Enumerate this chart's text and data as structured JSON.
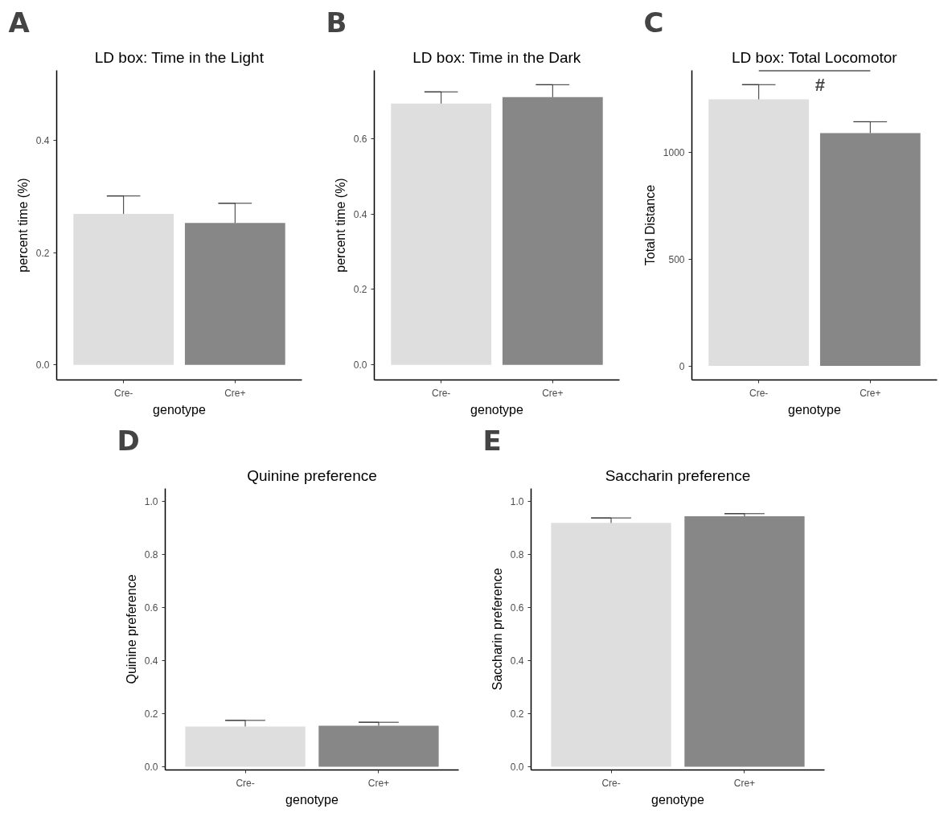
{
  "chart_data": [
    {
      "type": "bar",
      "title": "LD box: Time in the Light",
      "xlabel": "genotype",
      "ylabel": "percent time (%)",
      "categories": [
        "Cre-",
        "Cre+"
      ],
      "values": [
        0.269,
        0.253
      ],
      "errors": [
        [
          0.269,
          0.301
        ],
        [
          0.253,
          0.288
        ]
      ],
      "colors": [
        "#dedede",
        "#878787"
      ],
      "ylim": [
        -0.027,
        0.525
      ],
      "yticks": [
        {
          "value": 0,
          "label": "0.0"
        },
        {
          "value": 0.2,
          "label": "0.2"
        },
        {
          "value": 0.4,
          "label": "0.4"
        }
      ],
      "grid": false,
      "annotations": [
        "A"
      ]
    },
    {
      "type": "bar",
      "title": "LD box: Time in the Dark",
      "xlabel": "genotype",
      "ylabel": "percent time (%)",
      "categories": [
        "Cre-",
        "Cre+"
      ],
      "values": [
        0.693,
        0.71
      ],
      "errors": [
        [
          0.693,
          0.724
        ],
        [
          0.71,
          0.743
        ]
      ],
      "colors": [
        "#dedede",
        "#878787"
      ],
      "ylim": [
        -0.04,
        0.781
      ],
      "yticks": [
        {
          "value": 0,
          "label": "0.0"
        },
        {
          "value": 0.2,
          "label": "0.2"
        },
        {
          "value": 0.4,
          "label": "0.4"
        },
        {
          "value": 0.6,
          "label": "0.6"
        }
      ],
      "grid": false,
      "annotations": [
        "B"
      ]
    },
    {
      "type": "bar",
      "title": "LD box: Total Locomotor",
      "xlabel": "genotype",
      "ylabel": "Total Distance",
      "categories": [
        "Cre-",
        "Cre+"
      ],
      "values": [
        1250,
        1092
      ],
      "errors": [
        [
          1250,
          1319
        ],
        [
          1092,
          1145
        ]
      ],
      "colors": [
        "#dedede",
        "#878787"
      ],
      "ylim": [
        -66,
        1386
      ],
      "yticks": [
        0,
        500,
        1000
      ],
      "grid": false,
      "annotations": [
        "C",
        "#"
      ]
    },
    {
      "type": "bar",
      "title": "Quinine preference",
      "xlabel": "genotype",
      "ylabel": "Quinine preference",
      "categories": [
        "Cre-",
        "Cre+"
      ],
      "values": [
        0.152,
        0.155
      ],
      "errors": [
        [
          0.152,
          0.175
        ],
        [
          0.155,
          0.168
        ]
      ],
      "colors": [
        "#dedede",
        "#878787"
      ],
      "ylim": [
        -0.012,
        1.05
      ],
      "yticks": [
        {
          "value": 0,
          "label": "0.0"
        },
        {
          "value": 0.2,
          "label": "0.2"
        },
        {
          "value": 0.4,
          "label": "0.4"
        },
        {
          "value": 0.6,
          "label": "0.6"
        },
        {
          "value": 0.8,
          "label": "0.8"
        },
        {
          "value": 1,
          "label": "1.0"
        }
      ],
      "grid": false,
      "annotations": [
        "D"
      ]
    },
    {
      "type": "bar",
      "title": "Saccharin preference",
      "xlabel": "genotype",
      "ylabel": "Saccharin preference",
      "categories": [
        "Cre-",
        "Cre+"
      ],
      "values": [
        0.92,
        0.945
      ],
      "errors": [
        [
          0.92,
          0.939
        ],
        [
          0.945,
          0.955
        ]
      ],
      "colors": [
        "#dedede",
        "#878787"
      ],
      "ylim": [
        -0.012,
        1.05
      ],
      "yticks": [
        {
          "value": 0,
          "label": "0.0"
        },
        {
          "value": 0.2,
          "label": "0.2"
        },
        {
          "value": 0.4,
          "label": "0.4"
        },
        {
          "value": 0.6,
          "label": "0.6"
        },
        {
          "value": 0.8,
          "label": "0.8"
        },
        {
          "value": 1,
          "label": "1.0"
        }
      ],
      "grid": false,
      "annotations": [
        "E"
      ]
    }
  ]
}
